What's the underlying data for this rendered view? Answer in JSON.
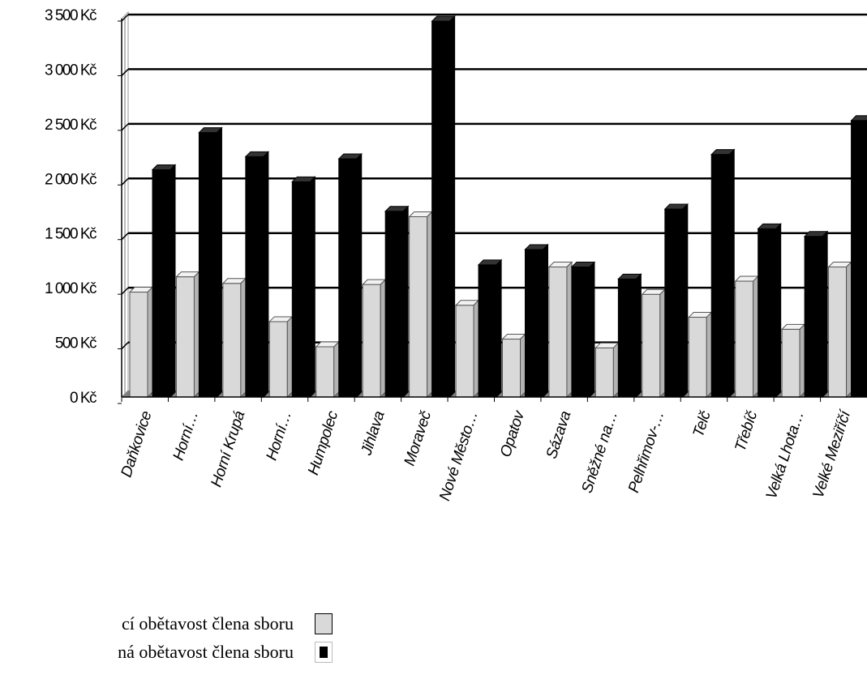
{
  "chart_data": {
    "type": "bar",
    "categories": [
      "Daňkovice",
      "Horní…",
      "Horní Krupá",
      "Horní…",
      "Humpolec",
      "Jihlava",
      "Moraveč",
      "Nové Město…",
      "Opatov",
      "Sázava",
      "Sněžné na…",
      "Pelhřimov-…",
      "Telč",
      "Třebíč",
      "Velká Lhota…",
      "Velké Meziříčí"
    ],
    "series": [
      {
        "name": "cí obětavost člena sboru",
        "color": "#d9d9d9",
        "values": [
          960,
          1100,
          1040,
          690,
          460,
          1030,
          1650,
          840,
          530,
          1190,
          450,
          940,
          730,
          1060,
          620,
          1190
        ]
      },
      {
        "name": "ná obětavost člena sboru",
        "color": "#000000",
        "values": [
          2080,
          2420,
          2200,
          1970,
          2180,
          1700,
          3440,
          1210,
          1350,
          1190,
          1080,
          1720,
          2220,
          1540,
          1470,
          2530
        ]
      }
    ],
    "yticks": [
      "0 Kč",
      "500 Kč",
      "1 000 Kč",
      "1 500 Kč",
      "2 000 Kč",
      "2 500 Kč",
      "3 000 Kč",
      "3 500 Kč"
    ],
    "ylim": [
      0,
      3500
    ],
    "grid": true,
    "legend_position": "bottom-left"
  }
}
